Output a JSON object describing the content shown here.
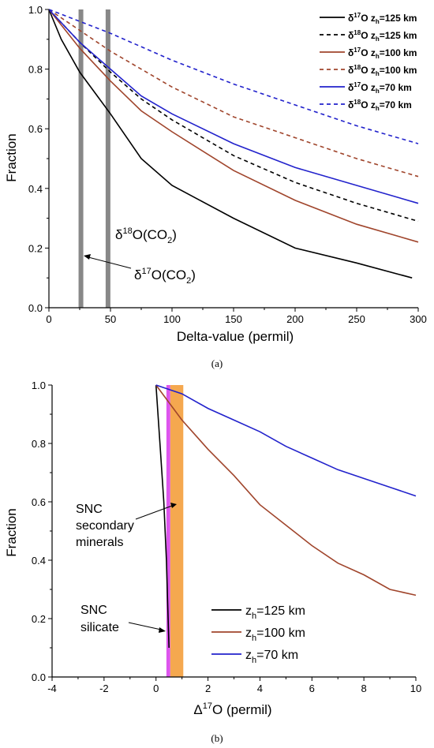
{
  "chart_data": [
    {
      "panel_label": "(a)",
      "type": "line",
      "xlabel": "Delta-value (permil)",
      "ylabel": "Fraction",
      "xlim": [
        0,
        300
      ],
      "ylim": [
        0,
        1.0
      ],
      "x_ticks": [
        "0",
        "50",
        "100",
        "150",
        "200",
        "250",
        "300"
      ],
      "y_ticks": [
        "0.0",
        "0.2",
        "0.4",
        "0.6",
        "0.8",
        "1.0"
      ],
      "legend_position": "top-right",
      "series": [
        {
          "name_iso": "17",
          "name_z": "125",
          "dash": false,
          "color": "#000000",
          "x": [
            0,
            10,
            25,
            50,
            75,
            100,
            150,
            200,
            250,
            295
          ],
          "y": [
            1.0,
            0.9,
            0.79,
            0.65,
            0.5,
            0.41,
            0.3,
            0.2,
            0.15,
            0.1
          ]
        },
        {
          "name_iso": "18",
          "name_z": "125",
          "dash": true,
          "color": "#000000",
          "x": [
            0,
            25,
            50,
            75,
            100,
            150,
            200,
            250,
            300
          ],
          "y": [
            1.0,
            0.89,
            0.79,
            0.7,
            0.63,
            0.51,
            0.42,
            0.35,
            0.29
          ]
        },
        {
          "name_iso": "17",
          "name_z": "100",
          "dash": false,
          "color": "#a0452c",
          "x": [
            0,
            25,
            50,
            75,
            100,
            150,
            200,
            250,
            300
          ],
          "y": [
            1.0,
            0.87,
            0.76,
            0.66,
            0.59,
            0.46,
            0.36,
            0.28,
            0.22
          ]
        },
        {
          "name_iso": "18",
          "name_z": "100",
          "dash": true,
          "color": "#a0452c",
          "x": [
            0,
            50,
            100,
            150,
            200,
            250,
            300
          ],
          "y": [
            1.0,
            0.86,
            0.74,
            0.64,
            0.57,
            0.5,
            0.44
          ]
        },
        {
          "name_iso": "17",
          "name_z": "70",
          "dash": false,
          "color": "#2222cc",
          "x": [
            0,
            25,
            50,
            75,
            100,
            150,
            200,
            250,
            300
          ],
          "y": [
            1.0,
            0.89,
            0.8,
            0.71,
            0.65,
            0.55,
            0.47,
            0.41,
            0.35
          ]
        },
        {
          "name_iso": "18",
          "name_z": "70",
          "dash": true,
          "color": "#2222cc",
          "x": [
            0,
            50,
            100,
            150,
            200,
            250,
            300
          ],
          "y": [
            1.0,
            0.92,
            0.83,
            0.75,
            0.68,
            0.61,
            0.55
          ]
        }
      ],
      "vertical_bands": [
        {
          "x": 26,
          "color": "#888888"
        },
        {
          "x": 48,
          "color": "#888888"
        }
      ],
      "annotations": [
        {
          "text_main": "δ",
          "text_sup": "18",
          "text_rest": "O(CO",
          "text_sub": "2",
          "text_close": ")"
        },
        {
          "text_main": "δ",
          "text_sup": "17",
          "text_rest": "O(CO",
          "text_sub": "2",
          "text_close": ")"
        }
      ]
    },
    {
      "panel_label": "(b)",
      "type": "line",
      "xlabel_main": "Δ",
      "xlabel_sup": "17",
      "xlabel_rest": "O (permil)",
      "ylabel": "Fraction",
      "xlim": [
        -4,
        10
      ],
      "ylim": [
        0,
        1.0
      ],
      "x_ticks": [
        "-4",
        "-2",
        "0",
        "2",
        "4",
        "6",
        "8",
        "10"
      ],
      "y_ticks": [
        "0.0",
        "0.2",
        "0.4",
        "0.6",
        "0.8",
        "1.0"
      ],
      "legend_position": "bottom-right",
      "series": [
        {
          "name_z": "125",
          "color": "#000000",
          "x": [
            0,
            0.15,
            0.3,
            0.4,
            0.45,
            0.5
          ],
          "y": [
            1.0,
            0.8,
            0.6,
            0.4,
            0.25,
            0.1
          ]
        },
        {
          "name_z": "100",
          "color": "#a0452c",
          "x": [
            0,
            1,
            2,
            3,
            4,
            5,
            6,
            7,
            8,
            9,
            10
          ],
          "y": [
            1.0,
            0.88,
            0.78,
            0.69,
            0.59,
            0.52,
            0.45,
            0.39,
            0.35,
            0.3,
            0.28
          ]
        },
        {
          "name_z": "70",
          "color": "#2222cc",
          "x": [
            0,
            1,
            2,
            3,
            4,
            5,
            6,
            7,
            8,
            9,
            10
          ],
          "y": [
            1.0,
            0.97,
            0.92,
            0.88,
            0.84,
            0.79,
            0.75,
            0.71,
            0.68,
            0.65,
            0.62
          ]
        }
      ],
      "vertical_bands": [
        {
          "x_from": 0.4,
          "x_to": 0.55,
          "color": "#dd55ee"
        },
        {
          "x_from": 0.55,
          "x_to": 1.05,
          "color": "#f5a84f"
        }
      ],
      "annotations": [
        {
          "lines": [
            "SNC",
            "secondary",
            "minerals"
          ]
        },
        {
          "lines": [
            "SNC",
            "silicate"
          ]
        }
      ]
    }
  ]
}
